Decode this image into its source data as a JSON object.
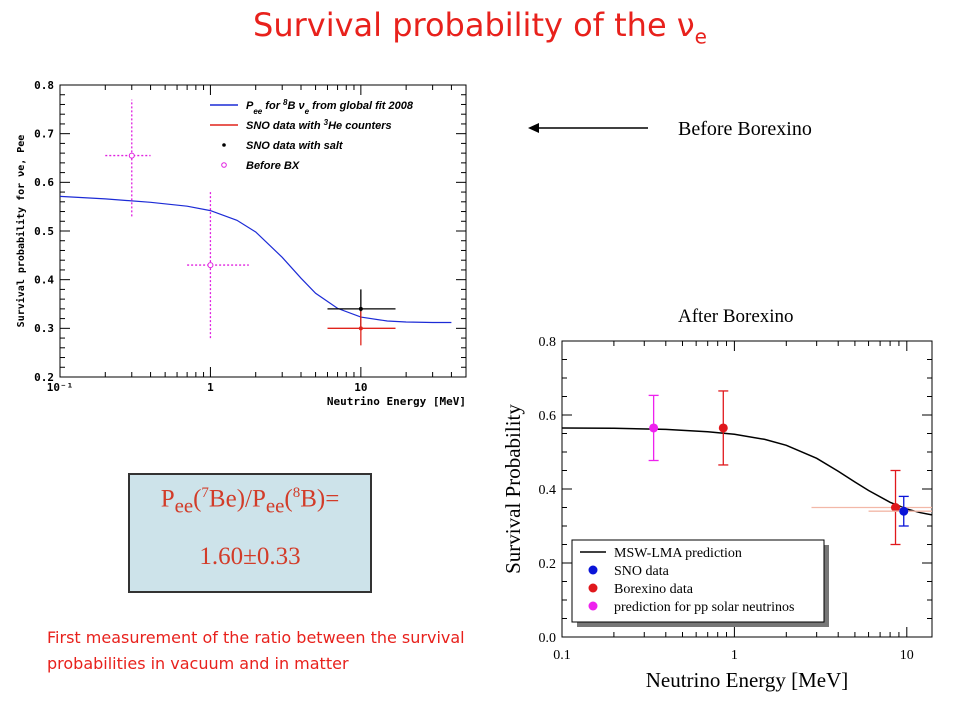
{
  "slide": {
    "title_main": "Survival probability of the ",
    "title_nu": "ν",
    "title_sub": "e",
    "before_label": "Before Borexino",
    "after_label": "After Borexino",
    "ratio": {
      "pee1": "P",
      "ee1": "ee",
      "be_open": "(",
      "be_mass": "7",
      "be_close": "Be)/P",
      "ee2": "ee",
      "b_open": "(",
      "b_mass": "8",
      "b_close": "B)=",
      "value": "1.60±0.33"
    },
    "note": "First measurement of the ratio between the survival probabilities in vacuum and in matter",
    "colors": {
      "title": "#e8211c",
      "ratio_text": "#d23c29",
      "ratio_bg": "#cde3ea"
    }
  },
  "chart_data": [
    {
      "type": "scatter",
      "x_scale": "log",
      "xlim": [
        0.1,
        50
      ],
      "ylim": [
        0.2,
        0.8
      ],
      "xlabel": "Neutrino Energy [MeV]",
      "ylabel": "Survival probability for νe, Pee",
      "x_ticks": [
        {
          "v": 0.1,
          "label": "10⁻¹"
        },
        {
          "v": 1,
          "label": "1"
        },
        {
          "v": 10,
          "label": "10"
        }
      ],
      "y_ticks": [
        0.2,
        0.3,
        0.4,
        0.5,
        0.6,
        0.7,
        0.8
      ],
      "y_tick_labels": [
        "0.2",
        "0.3",
        "0.4",
        "0.5",
        "0.6",
        "0.7",
        "0.8"
      ],
      "legend": [
        {
          "label": "Pee for 8B νe from global fit 2008",
          "color": "#1c2bd6",
          "style": "line"
        },
        {
          "label": "SNO data with 3He counters",
          "color": "#e0241c",
          "style": "line"
        },
        {
          "label": "SNO data with salt",
          "color": "#000000",
          "style": "dot"
        },
        {
          "label": "Before BX",
          "color": "#e020e0",
          "style": "circle"
        }
      ],
      "legend_rich": [
        [
          "P",
          {
            "t": "ee",
            "sub": true
          },
          " for ",
          {
            "t": "8",
            "sup": true
          },
          "B ν",
          {
            "t": "e",
            "sub": true
          },
          " from global fit 2008"
        ],
        [
          "SNO data with ",
          {
            "t": "3",
            "sup": true
          },
          "He counters"
        ],
        [
          "SNO data with salt"
        ],
        [
          "Before BX"
        ]
      ],
      "series": [
        {
          "name": "Pee for 8B νe from global fit 2008",
          "style": "curve",
          "color": "#1c2bd6",
          "x": [
            0.1,
            0.2,
            0.4,
            0.7,
            1.0,
            1.5,
            2.0,
            3.0,
            4.0,
            5.0,
            7.0,
            10,
            15,
            20,
            30,
            40
          ],
          "y": [
            0.571,
            0.566,
            0.559,
            0.551,
            0.542,
            0.522,
            0.498,
            0.446,
            0.403,
            0.372,
            0.341,
            0.323,
            0.315,
            0.313,
            0.312,
            0.312
          ]
        },
        {
          "name": "Before BX",
          "style": "errorbar",
          "color": "#e020e0",
          "dashed": true,
          "points": [
            {
              "x": 0.3,
              "y": 0.655,
              "xlo": 0.2,
              "xhi": 0.4,
              "ylo": 0.53,
              "yhi": 0.77
            },
            {
              "x": 1.0,
              "y": 0.43,
              "xlo": 0.7,
              "xhi": 1.8,
              "ylo": 0.28,
              "yhi": 0.58
            }
          ]
        },
        {
          "name": "SNO data with salt",
          "style": "errorbar",
          "color": "#000000",
          "points": [
            {
              "x": 10,
              "y": 0.34,
              "xlo": 6,
              "xhi": 17,
              "ylo": 0.3,
              "yhi": 0.38
            }
          ]
        },
        {
          "name": "SNO data with 3He counters",
          "style": "errorbar",
          "color": "#e0241c",
          "points": [
            {
              "x": 10,
              "y": 0.3,
              "xlo": 6,
              "xhi": 17,
              "ylo": 0.265,
              "yhi": 0.335
            }
          ]
        }
      ]
    },
    {
      "type": "scatter",
      "x_scale": "log",
      "xlim": [
        0.1,
        14
      ],
      "ylim": [
        0.0,
        0.8
      ],
      "xlabel": "Neutrino Energy [MeV]",
      "ylabel": "Survival Probability",
      "x_ticks": [
        {
          "v": 0.1,
          "label": "0.1"
        },
        {
          "v": 1,
          "label": "1"
        },
        {
          "v": 10,
          "label": "10"
        }
      ],
      "y_ticks": [
        0.0,
        0.2,
        0.4,
        0.6,
        0.8
      ],
      "y_tick_labels": [
        "0.0",
        "0.2",
        "0.4",
        "0.6",
        "0.8"
      ],
      "legend": [
        {
          "label": "MSW-LMA prediction",
          "color": "#000000",
          "style": "line"
        },
        {
          "label": "SNO data",
          "color": "#0a14d8",
          "style": "dot"
        },
        {
          "label": "Borexino data",
          "color": "#e0181c",
          "style": "dot"
        },
        {
          "label": "prediction for pp solar neutrinos",
          "color": "#ee22ee",
          "style": "dot"
        }
      ],
      "series": [
        {
          "name": "MSW-LMA prediction",
          "style": "curve",
          "color": "#000000",
          "x": [
            0.1,
            0.2,
            0.4,
            0.7,
            1.0,
            1.5,
            2.0,
            3.0,
            4.0,
            5.0,
            6.0,
            8.0,
            10,
            12,
            14
          ],
          "y": [
            0.565,
            0.564,
            0.561,
            0.555,
            0.548,
            0.534,
            0.518,
            0.483,
            0.448,
            0.419,
            0.396,
            0.364,
            0.346,
            0.336,
            0.33
          ]
        },
        {
          "name": "prediction for pp solar neutrinos",
          "style": "errorbar",
          "color": "#ee22ee",
          "points": [
            {
              "x": 0.34,
              "y": 0.565,
              "ylo": 0.477,
              "yhi": 0.653
            }
          ]
        },
        {
          "name": "Borexino data",
          "style": "errorbar",
          "color": "#e0181c",
          "points": [
            {
              "x": 0.862,
              "y": 0.565,
              "ylo": 0.465,
              "yhi": 0.665
            },
            {
              "x": 8.6,
              "y": 0.35,
              "ylo": 0.25,
              "yhi": 0.45,
              "xlo": 2.8,
              "xhi": 14
            }
          ]
        },
        {
          "name": "SNO data",
          "style": "errorbar",
          "color": "#0a14d8",
          "points": [
            {
              "x": 9.6,
              "y": 0.34,
              "ylo": 0.3,
              "yhi": 0.38,
              "xlo": 6,
              "xhi": 14
            }
          ]
        }
      ]
    }
  ]
}
